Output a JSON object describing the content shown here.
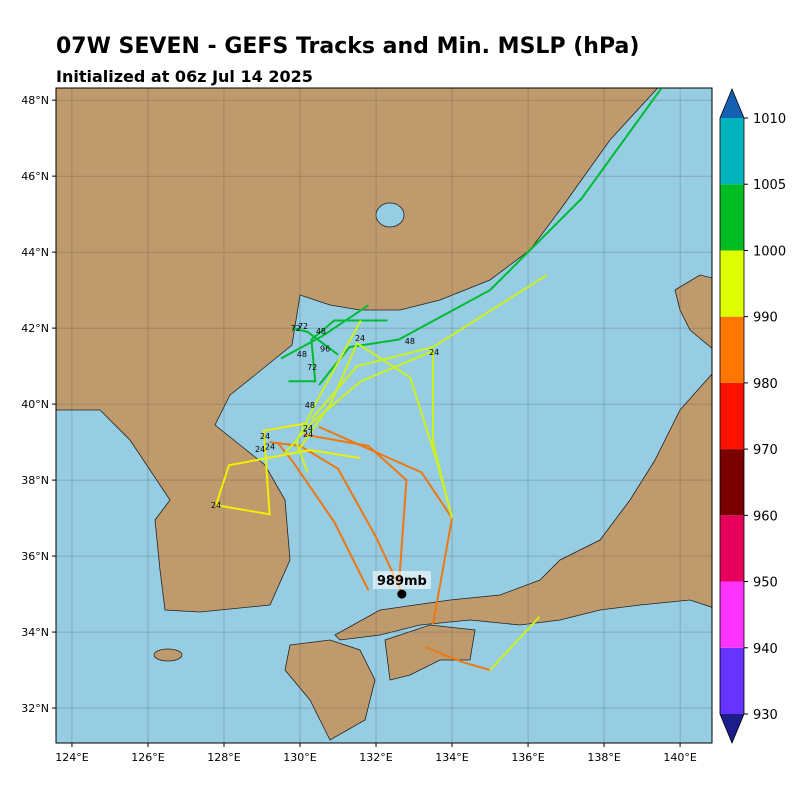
{
  "chart_data": {
    "type": "map",
    "title": "07W SEVEN - GEFS Tracks and Min. MSLP (hPa)",
    "subtitle": "Initialized at 06z Jul 14 2025",
    "xlim": [
      123.58,
      140.84
    ],
    "ylim": [
      31.08,
      48.32
    ],
    "xticks": [
      {
        "value": 124,
        "label": "124°E"
      },
      {
        "value": 126,
        "label": "126°E"
      },
      {
        "value": 128,
        "label": "128°E"
      },
      {
        "value": 130,
        "label": "130°E"
      },
      {
        "value": 132,
        "label": "132°E"
      },
      {
        "value": 134,
        "label": "134°E"
      },
      {
        "value": 136,
        "label": "136°E"
      },
      {
        "value": 138,
        "label": "138°E"
      },
      {
        "value": 140,
        "label": "140°E"
      }
    ],
    "yticks": [
      {
        "value": 32,
        "label": "32°N"
      },
      {
        "value": 34,
        "label": "34°N"
      },
      {
        "value": 36,
        "label": "36°N"
      },
      {
        "value": 38,
        "label": "38°N"
      },
      {
        "value": 40,
        "label": "40°N"
      },
      {
        "value": 42,
        "label": "42°N"
      },
      {
        "value": 44,
        "label": "44°N"
      },
      {
        "value": 46,
        "label": "46°N"
      },
      {
        "value": 48,
        "label": "48°N"
      }
    ],
    "grid": true,
    "tracks": [
      {
        "color": "#00bb33",
        "lon": [
          130.5,
          131.3,
          132.6,
          135.0,
          137.4,
          139.5
        ],
        "lat": [
          40.5,
          41.5,
          41.7,
          43.0,
          45.4,
          48.3
        ]
      },
      {
        "color": "#ccf020",
        "lon": [
          130.3,
          131.5,
          133.5,
          136.5
        ],
        "lat": [
          39.6,
          41.0,
          41.5,
          43.4
        ]
      },
      {
        "color": "#ee7711",
        "lon": [
          132.7,
          132.0,
          131.0,
          130.0,
          129.2
        ],
        "lat": [
          35.0,
          36.5,
          38.3,
          38.9,
          39.0
        ]
      },
      {
        "color": "#ee7711",
        "lon": [
          133.5,
          134.0,
          133.2,
          130.5
        ],
        "lat": [
          34.2,
          37.0,
          38.2,
          39.4
        ]
      },
      {
        "color": "#ee7711",
        "lon": [
          132.6,
          132.8,
          131.8,
          130.1
        ],
        "lat": [
          35.2,
          38.0,
          38.9,
          39.2
        ]
      },
      {
        "color": "#ee7711",
        "lon": [
          131.8,
          130.9,
          129.8,
          129.4
        ],
        "lat": [
          35.1,
          36.9,
          38.5,
          39.0
        ]
      },
      {
        "color": "#eef000",
        "lon": [
          127.79,
          128.13,
          130.26,
          131.58
        ],
        "lat": [
          37.34,
          38.39,
          38.79,
          38.58
        ]
      },
      {
        "color": "#eef000",
        "lon": [
          127.79,
          129.2,
          129.05,
          130.2
        ],
        "lat": [
          37.34,
          37.1,
          39.3,
          39.5
        ]
      },
      {
        "color": "#ccf020",
        "lon": [
          134.0,
          133.6,
          132.9,
          131.5,
          130.8,
          129.9
        ],
        "lat": [
          37.0,
          38.5,
          40.7,
          41.6,
          40.0,
          38.7
        ]
      },
      {
        "color": "#ccf020",
        "lon": [
          134.0,
          133.5,
          133.5,
          131.6,
          130.3,
          129.6
        ],
        "lat": [
          37.0,
          39.0,
          41.4,
          40.6,
          39.5,
          38.7
        ]
      },
      {
        "color": "#ee7711",
        "lon": [
          133.3,
          134.3,
          135.0
        ],
        "lat": [
          33.6,
          33.2,
          33.0
        ]
      },
      {
        "color": "#ccf020",
        "lon": [
          135.0,
          136.3
        ],
        "lat": [
          33.0,
          34.4
        ]
      },
      {
        "color": "#00bb33",
        "lon": [
          129.7,
          130.4,
          130.3,
          130.9,
          132.3
        ],
        "lat": [
          40.6,
          40.6,
          41.7,
          42.2,
          42.2
        ]
      },
      {
        "color": "#00bb33",
        "lon": [
          131.0,
          130.2,
          129.8
        ],
        "lat": [
          41.3,
          41.9,
          42.0
        ]
      },
      {
        "color": "#00bb33",
        "lon": [
          131.8,
          130.6,
          129.5
        ],
        "lat": [
          42.6,
          41.8,
          41.2
        ]
      },
      {
        "color": "#ccf020",
        "lon": [
          131.6,
          130.4,
          129.9,
          130.2
        ],
        "lat": [
          42.2,
          40.0,
          39.0,
          38.2
        ]
      }
    ],
    "hour_labels": [
      {
        "text": "24",
        "lon": 127.79,
        "lat": 37.34
      },
      {
        "text": "24",
        "lon": 129.08,
        "lat": 39.16
      },
      {
        "text": "24",
        "lon": 128.95,
        "lat": 38.82
      },
      {
        "text": "24",
        "lon": 129.21,
        "lat": 38.89
      },
      {
        "text": "24",
        "lon": 130.21,
        "lat": 39.37
      },
      {
        "text": "24",
        "lon": 130.21,
        "lat": 39.21
      },
      {
        "text": "24",
        "lon": 131.58,
        "lat": 41.74
      },
      {
        "text": "24",
        "lon": 133.53,
        "lat": 41.37
      },
      {
        "text": "48",
        "lon": 130.26,
        "lat": 39.97
      },
      {
        "text": "48",
        "lon": 132.89,
        "lat": 41.66
      },
      {
        "text": "48",
        "lon": 130.55,
        "lat": 41.92
      },
      {
        "text": "48",
        "lon": 130.05,
        "lat": 41.32
      },
      {
        "text": "72",
        "lon": 130.32,
        "lat": 40.97
      },
      {
        "text": "72",
        "lon": 129.89,
        "lat": 42.0
      },
      {
        "text": "72",
        "lon": 130.08,
        "lat": 42.05
      },
      {
        "text": "96",
        "lon": 130.66,
        "lat": 41.47
      }
    ],
    "center": {
      "label": "989mb",
      "lon": 132.68,
      "lat": 35.0
    },
    "colorbar": {
      "boundaries": [
        930,
        940,
        950,
        960,
        970,
        980,
        990,
        1000,
        1005,
        1010
      ],
      "colors": [
        "#6633ff",
        "#ff33ff",
        "#e6005c",
        "#7a0000",
        "#ff1100",
        "#ff7700",
        "#ddff00",
        "#00bb22",
        "#00b4bf"
      ],
      "extend_colors": [
        "#1c1c8a",
        "#1560b3"
      ]
    }
  }
}
